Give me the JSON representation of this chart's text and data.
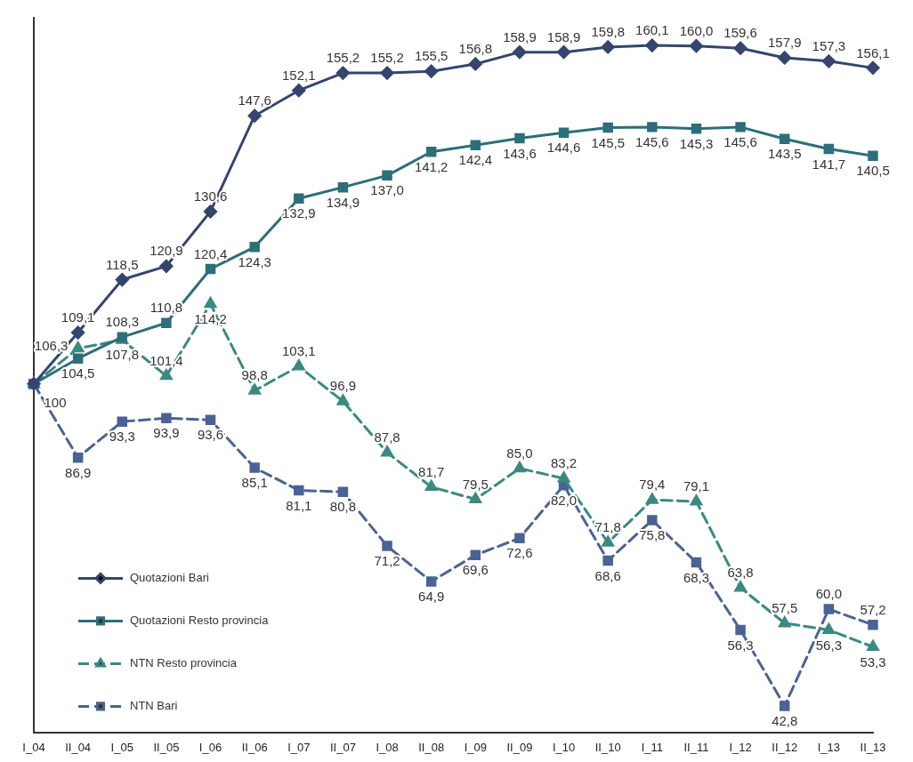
{
  "chart_data": {
    "type": "line",
    "categories": [
      "I_04",
      "II_04",
      "I_05",
      "II_05",
      "I_06",
      "II_06",
      "I_07",
      "II_07",
      "I_08",
      "II_08",
      "I_09",
      "II_09",
      "I_10",
      "II_10",
      "I_11",
      "II_11",
      "I_12",
      "II_12",
      "I_13",
      "II_13"
    ],
    "ylim": [
      38,
      165
    ],
    "legend": "bottom left",
    "grid": false,
    "series": [
      {
        "name": "Quotazioni Bari",
        "color": "#34466e",
        "marker": "diamond",
        "line_style": "solid",
        "values": [
          100,
          109.1,
          118.5,
          120.9,
          130.6,
          147.6,
          152.1,
          155.2,
          155.2,
          155.5,
          156.8,
          158.9,
          158.9,
          159.8,
          160.1,
          160.0,
          159.6,
          157.9,
          157.3,
          156.1
        ],
        "value_labels": [
          "100",
          "109,1",
          "118,5",
          "120,9",
          "130,6",
          "147,6",
          "152,1",
          "155,2",
          "155,2",
          "155,5",
          "156,8",
          "158,9",
          "158,9",
          "159,8",
          "160,1",
          "160,0",
          "159,6",
          "157,9",
          "157,3",
          "156,1"
        ]
      },
      {
        "name": "Quotazioni Resto provincia",
        "color": "#2c6f7a",
        "marker": "square",
        "line_style": "solid",
        "values": [
          100,
          104.5,
          108.3,
          110.8,
          120.4,
          124.3,
          132.9,
          134.9,
          137.0,
          141.2,
          142.4,
          143.6,
          144.6,
          145.5,
          145.6,
          145.3,
          145.6,
          143.5,
          141.7,
          140.5
        ],
        "value_labels": [
          null,
          "104,5",
          "108,3",
          "110,8",
          "120,4",
          "124,3",
          "132,9",
          "134,9",
          "137,0",
          "141,2",
          "142,4",
          "143,6",
          "144,6",
          "145,5",
          "145,6",
          "145,3",
          "145,6",
          "143,5",
          "141,7",
          "140,5"
        ]
      },
      {
        "name": "NTN Resto provincia",
        "color": "#3a8a80",
        "marker": "triangle",
        "line_style": "dashed",
        "values": [
          100,
          106.3,
          107.8,
          101.4,
          114.2,
          98.8,
          103.1,
          96.9,
          87.8,
          81.7,
          79.5,
          85.0,
          83.2,
          71.8,
          79.4,
          79.1,
          63.8,
          57.5,
          56.3,
          53.3
        ],
        "value_labels": [
          null,
          "106,3",
          "107,8",
          "101,4",
          "114,2",
          "98,8",
          "103,1",
          "96,9",
          "87,8",
          "81,7",
          "79,5",
          "85,0",
          "83,2",
          "71,8",
          "79,4",
          "79,1",
          "63,8",
          "57,5",
          "56,3",
          "53,3"
        ]
      },
      {
        "name": "NTN Bari",
        "color": "#4a6394",
        "marker": "square",
        "line_style": "dashed",
        "values": [
          100,
          86.9,
          93.3,
          93.9,
          93.6,
          85.1,
          81.1,
          80.8,
          71.2,
          64.9,
          69.6,
          72.6,
          82.0,
          68.6,
          75.8,
          68.3,
          56.3,
          42.8,
          60.0,
          57.2
        ],
        "value_labels": [
          null,
          "86,9",
          "93,3",
          "93,9",
          "93,6",
          "85,1",
          "81,1",
          "80,8",
          "71,2",
          "64,9",
          "69,6",
          "72,6",
          "82,0",
          "68,6",
          "75,8",
          "68,3",
          "56,3",
          "42,8",
          "60,0",
          "57,2"
        ]
      }
    ]
  }
}
